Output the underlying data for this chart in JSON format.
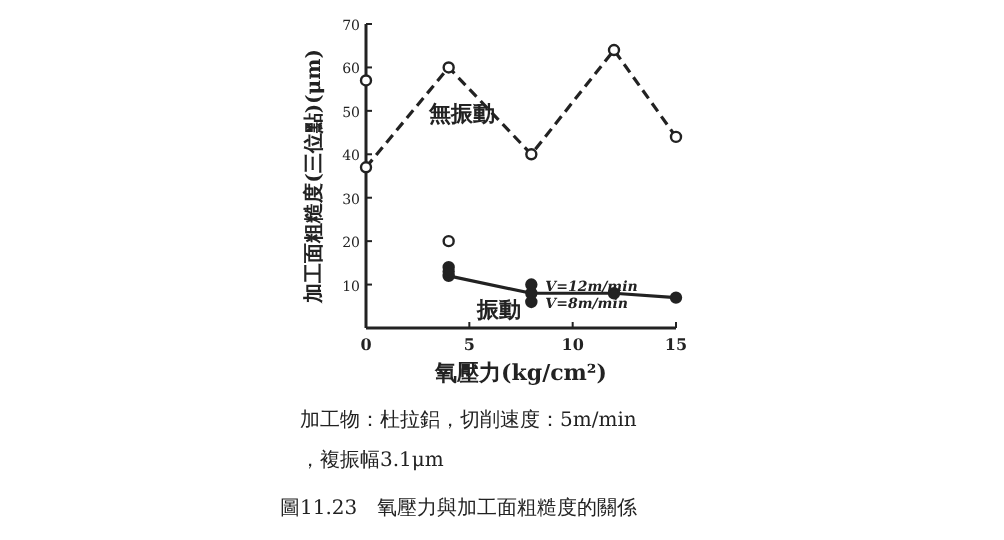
{
  "chart_data": {
    "type": "line",
    "title": "圖11.23　氧壓力與加工面粗糙度的關係",
    "xlabel": "氧壓力(kg/cm²)",
    "ylabel": "加工面粗糙度(三位點)(μm)",
    "series": [
      {
        "name": "無振動",
        "color": "#222222",
        "x": [
          0,
          4,
          8,
          12,
          15
        ],
        "values": [
          37,
          60,
          40,
          64,
          44
        ],
        "line_style": "dashed",
        "marker": "circle"
      },
      {
        "name": "振動",
        "color": "#222222",
        "x": [
          4,
          8,
          12,
          15
        ],
        "values": [
          12,
          8,
          8,
          7
        ],
        "line_style": "solid",
        "marker": "circle"
      },
      {
        "type": "scatter",
        "color": "#222222",
        "x": [
          4,
          4,
          8,
          8
        ],
        "values": [
          14,
          13,
          10,
          6
        ],
        "marker": "circle"
      },
      {
        "type": "scatter",
        "color": "#222222",
        "x": [
          0,
          4
        ],
        "values": [
          57,
          20
        ],
        "marker": "circle"
      }
    ],
    "xlim": [
      0,
      15
    ],
    "xticks": [
      0,
      5,
      10,
      15
    ],
    "ylim": [
      0,
      70
    ],
    "yticks": [
      10,
      20,
      30,
      40,
      50,
      60,
      70
    ],
    "grid": false,
    "annotations": [
      {
        "text": "V=12m/min",
        "x": 8,
        "y": 10
      },
      {
        "text": "V=8m/min",
        "x": 8,
        "y": 6
      },
      "加工物：杜拉鋁，切削速度：5m/min",
      "，複振幅3.1μm"
    ]
  }
}
